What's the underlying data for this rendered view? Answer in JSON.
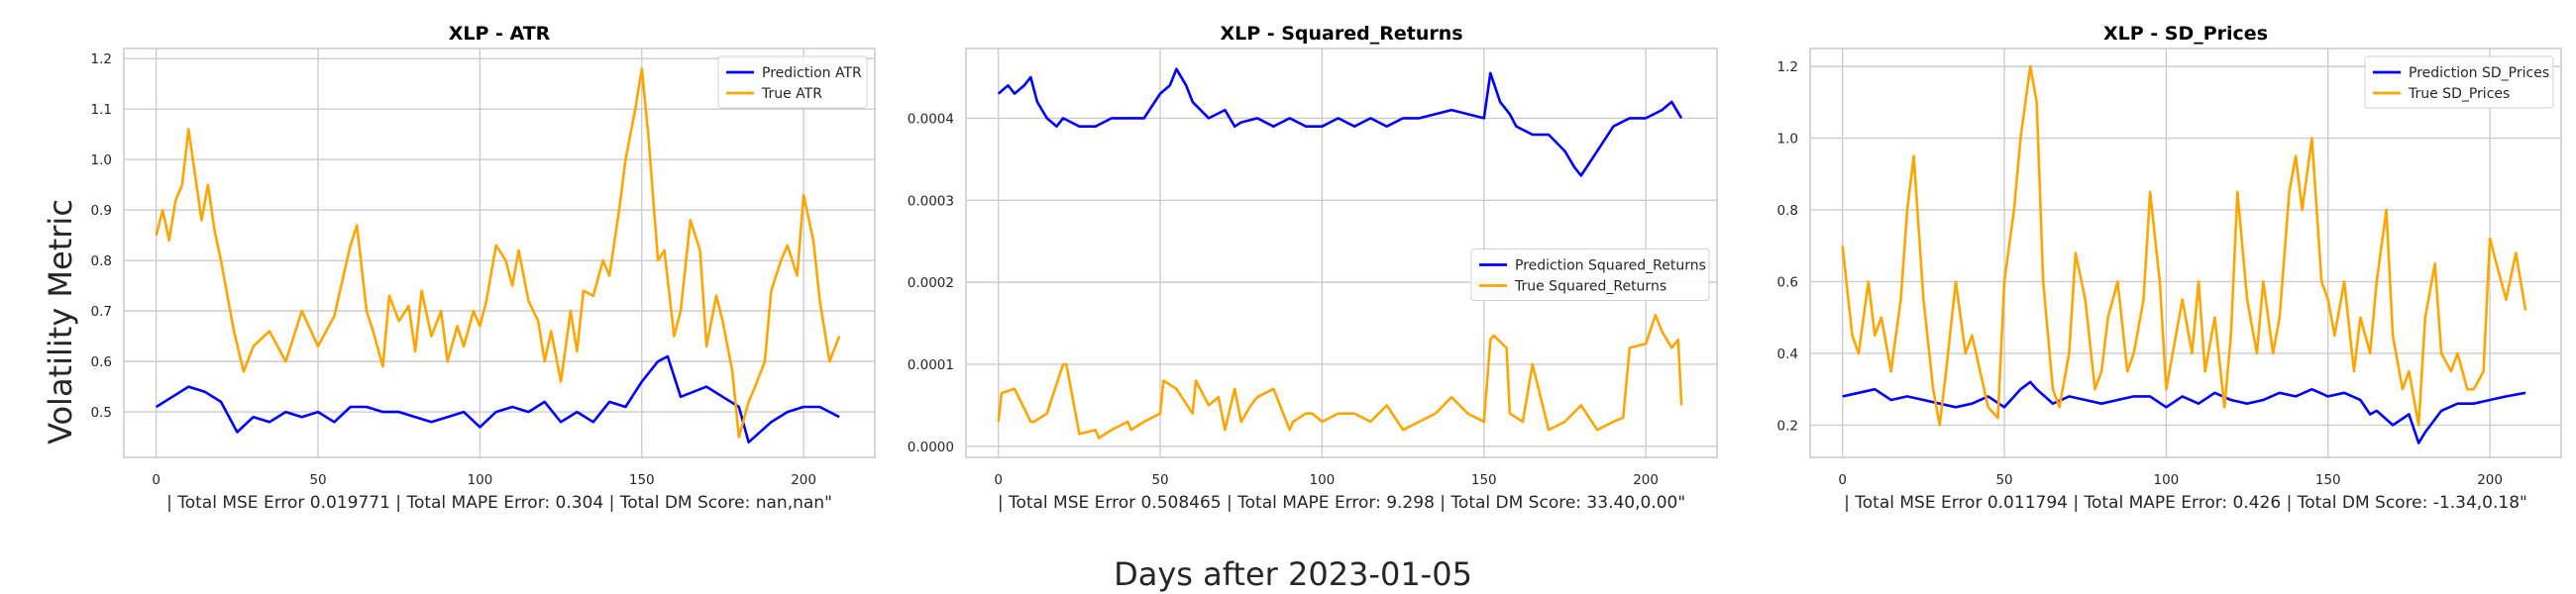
{
  "figure": {
    "ylabel": "Volatility Metric",
    "xlabel": "Days after 2023-01-05"
  },
  "colors": {
    "prediction": "#0000ff",
    "true": "#ffa500",
    "grid": "#cccccc",
    "frame": "#cccccc"
  },
  "chart_data": [
    {
      "type": "line",
      "title": "XLP - ATR",
      "note": "| Total MSE Error 0.019771 | Total MAPE Error: 0.304 | Total DM Score: nan,nan\"",
      "xlim": [
        -10,
        222
      ],
      "ylim": [
        0.41,
        1.22
      ],
      "xticks": [
        0,
        50,
        100,
        150,
        200
      ],
      "yticks": [
        "0.5",
        "0.6",
        "0.7",
        "0.8",
        "0.9",
        "1.0",
        "1.1",
        "1.2"
      ],
      "legend_position": "upper right",
      "series": [
        {
          "name": "Prediction ATR",
          "color": "#0000ff",
          "x": [
            0,
            5,
            10,
            15,
            20,
            25,
            30,
            35,
            40,
            45,
            50,
            55,
            60,
            65,
            70,
            75,
            80,
            85,
            90,
            95,
            100,
            105,
            110,
            115,
            120,
            125,
            130,
            135,
            140,
            145,
            150,
            155,
            158,
            162,
            170,
            175,
            180,
            183,
            190,
            195,
            200,
            205,
            211
          ],
          "y": [
            0.51,
            0.53,
            0.55,
            0.54,
            0.52,
            0.46,
            0.49,
            0.48,
            0.5,
            0.49,
            0.5,
            0.48,
            0.51,
            0.51,
            0.5,
            0.5,
            0.49,
            0.48,
            0.49,
            0.5,
            0.47,
            0.5,
            0.51,
            0.5,
            0.52,
            0.48,
            0.5,
            0.48,
            0.52,
            0.51,
            0.56,
            0.6,
            0.61,
            0.53,
            0.55,
            0.53,
            0.51,
            0.44,
            0.48,
            0.5,
            0.51,
            0.51,
            0.49
          ]
        },
        {
          "name": "True ATR",
          "color": "#ffa500",
          "x": [
            0,
            2,
            4,
            6,
            8,
            10,
            12,
            14,
            16,
            18,
            20,
            24,
            27,
            30,
            35,
            40,
            45,
            50,
            55,
            60,
            62,
            65,
            67,
            70,
            72,
            75,
            78,
            80,
            82,
            85,
            88,
            90,
            93,
            95,
            98,
            100,
            102,
            105,
            108,
            110,
            112,
            115,
            118,
            120,
            122,
            125,
            128,
            130,
            132,
            135,
            138,
            140,
            143,
            145,
            148,
            150,
            152,
            155,
            157,
            160,
            162,
            165,
            168,
            170,
            173,
            175,
            178,
            180,
            183,
            185,
            188,
            190,
            193,
            195,
            198,
            200,
            203,
            205,
            208,
            211
          ],
          "y": [
            0.85,
            0.9,
            0.84,
            0.92,
            0.95,
            1.06,
            0.97,
            0.88,
            0.95,
            0.86,
            0.8,
            0.66,
            0.58,
            0.63,
            0.66,
            0.6,
            0.7,
            0.63,
            0.69,
            0.83,
            0.87,
            0.7,
            0.66,
            0.59,
            0.73,
            0.68,
            0.71,
            0.62,
            0.74,
            0.65,
            0.7,
            0.6,
            0.67,
            0.63,
            0.7,
            0.67,
            0.72,
            0.83,
            0.8,
            0.75,
            0.82,
            0.72,
            0.68,
            0.6,
            0.66,
            0.56,
            0.7,
            0.62,
            0.74,
            0.73,
            0.8,
            0.77,
            0.9,
            1.0,
            1.1,
            1.18,
            1.05,
            0.8,
            0.82,
            0.65,
            0.7,
            0.88,
            0.82,
            0.63,
            0.73,
            0.68,
            0.58,
            0.45,
            0.52,
            0.55,
            0.6,
            0.74,
            0.8,
            0.83,
            0.77,
            0.93,
            0.84,
            0.72,
            0.6,
            0.65
          ]
        }
      ]
    },
    {
      "type": "line",
      "title": "XLP - Squared_Returns",
      "note": "| Total MSE Error 0.508465 | Total MAPE Error: 9.298 | Total DM Score: 33.40,0.00\"",
      "xlim": [
        -10,
        222
      ],
      "ylim": [
        -1.35e-05,
        0.000485
      ],
      "xticks": [
        0,
        50,
        100,
        150,
        200
      ],
      "yticks": [
        "0.0000",
        "0.0001",
        "0.0002",
        "0.0003",
        "0.0004"
      ],
      "legend_position": "center right",
      "series": [
        {
          "name": "Prediction Squared_Returns",
          "color": "#0000ff",
          "x": [
            0,
            3,
            5,
            8,
            10,
            12,
            15,
            18,
            20,
            25,
            30,
            35,
            40,
            45,
            50,
            53,
            55,
            58,
            60,
            65,
            70,
            73,
            75,
            80,
            85,
            90,
            95,
            100,
            105,
            110,
            115,
            120,
            125,
            130,
            135,
            140,
            145,
            150,
            152,
            155,
            158,
            160,
            165,
            170,
            175,
            178,
            180,
            185,
            190,
            195,
            200,
            205,
            208,
            211
          ],
          "y": [
            0.00043,
            0.00044,
            0.00043,
            0.00044,
            0.00045,
            0.00042,
            0.0004,
            0.00039,
            0.0004,
            0.00039,
            0.00039,
            0.0004,
            0.0004,
            0.0004,
            0.00043,
            0.00044,
            0.00046,
            0.00044,
            0.00042,
            0.0004,
            0.00041,
            0.00039,
            0.000395,
            0.0004,
            0.00039,
            0.0004,
            0.00039,
            0.00039,
            0.0004,
            0.00039,
            0.0004,
            0.00039,
            0.0004,
            0.0004,
            0.000405,
            0.00041,
            0.000405,
            0.0004,
            0.000455,
            0.00042,
            0.000405,
            0.00039,
            0.00038,
            0.00038,
            0.00036,
            0.00034,
            0.00033,
            0.00036,
            0.00039,
            0.0004,
            0.0004,
            0.00041,
            0.00042,
            0.0004
          ]
        },
        {
          "name": "True Squared_Returns",
          "color": "#ffa500",
          "x": [
            0,
            1,
            5,
            10,
            11,
            15,
            20,
            21,
            25,
            30,
            31,
            35,
            40,
            41,
            45,
            50,
            51,
            55,
            60,
            61,
            65,
            68,
            70,
            73,
            75,
            78,
            80,
            85,
            90,
            91,
            95,
            97,
            100,
            105,
            110,
            115,
            120,
            125,
            130,
            135,
            140,
            145,
            150,
            152,
            153,
            157,
            158,
            162,
            165,
            170,
            175,
            180,
            185,
            190,
            193,
            195,
            200,
            203,
            205,
            208,
            210,
            211
          ],
          "y": [
            3e-05,
            6.5e-05,
            7e-05,
            3e-05,
            3e-05,
            4e-05,
            0.0001,
            0.0001,
            1.5e-05,
            2e-05,
            1e-05,
            2e-05,
            3e-05,
            2e-05,
            3e-05,
            4e-05,
            8e-05,
            7e-05,
            4e-05,
            8e-05,
            5e-05,
            6e-05,
            2e-05,
            7e-05,
            3e-05,
            5e-05,
            6e-05,
            7e-05,
            2e-05,
            3e-05,
            4e-05,
            4e-05,
            3e-05,
            4e-05,
            4e-05,
            3e-05,
            5e-05,
            2e-05,
            3e-05,
            4e-05,
            6e-05,
            4e-05,
            3e-05,
            0.00013,
            0.000135,
            0.00012,
            4e-05,
            3e-05,
            0.0001,
            2e-05,
            3e-05,
            5e-05,
            2e-05,
            3e-05,
            3.5e-05,
            0.00012,
            0.000125,
            0.00016,
            0.00014,
            0.00012,
            0.00013,
            5e-05
          ]
        }
      ]
    },
    {
      "type": "line",
      "title": "XLP - SD_Prices",
      "note": "| Total MSE Error 0.011794 | Total MAPE Error: 0.426 | Total DM Score: -1.34,0.18\"",
      "xlim": [
        -10,
        222
      ],
      "ylim": [
        0.11,
        1.25
      ],
      "xticks": [
        0,
        50,
        100,
        150,
        200
      ],
      "yticks": [
        "0.2",
        "0.4",
        "0.6",
        "0.8",
        "1.0",
        "1.2"
      ],
      "legend_position": "upper right",
      "series": [
        {
          "name": "Prediction SD_Prices",
          "color": "#0000ff",
          "x": [
            0,
            5,
            10,
            15,
            20,
            25,
            30,
            35,
            40,
            45,
            50,
            55,
            58,
            60,
            65,
            70,
            75,
            80,
            85,
            90,
            95,
            100,
            105,
            110,
            115,
            120,
            125,
            130,
            135,
            140,
            145,
            150,
            155,
            160,
            163,
            165,
            170,
            175,
            178,
            180,
            185,
            190,
            195,
            200,
            205,
            211
          ],
          "y": [
            0.28,
            0.29,
            0.3,
            0.27,
            0.28,
            0.27,
            0.26,
            0.25,
            0.26,
            0.28,
            0.25,
            0.3,
            0.32,
            0.3,
            0.26,
            0.28,
            0.27,
            0.26,
            0.27,
            0.28,
            0.28,
            0.25,
            0.28,
            0.26,
            0.29,
            0.27,
            0.26,
            0.27,
            0.29,
            0.28,
            0.3,
            0.28,
            0.29,
            0.27,
            0.23,
            0.24,
            0.2,
            0.23,
            0.15,
            0.18,
            0.24,
            0.26,
            0.26,
            0.27,
            0.28,
            0.29
          ]
        },
        {
          "name": "True SD_Prices",
          "color": "#ffa500",
          "x": [
            0,
            3,
            5,
            8,
            10,
            12,
            15,
            18,
            20,
            22,
            25,
            28,
            30,
            32,
            35,
            38,
            40,
            43,
            45,
            48,
            50,
            53,
            55,
            58,
            60,
            62,
            65,
            67,
            70,
            72,
            75,
            78,
            80,
            82,
            85,
            88,
            90,
            93,
            95,
            98,
            100,
            102,
            105,
            108,
            110,
            112,
            115,
            118,
            120,
            122,
            125,
            128,
            130,
            133,
            135,
            138,
            140,
            142,
            145,
            148,
            150,
            152,
            155,
            158,
            160,
            163,
            165,
            168,
            170,
            173,
            175,
            178,
            180,
            183,
            185,
            188,
            190,
            193,
            195,
            198,
            200,
            202,
            205,
            208,
            211
          ],
          "y": [
            0.7,
            0.45,
            0.4,
            0.6,
            0.45,
            0.5,
            0.35,
            0.55,
            0.8,
            0.95,
            0.55,
            0.3,
            0.2,
            0.35,
            0.6,
            0.4,
            0.45,
            0.33,
            0.25,
            0.22,
            0.6,
            0.8,
            1.0,
            1.2,
            1.1,
            0.6,
            0.3,
            0.25,
            0.4,
            0.68,
            0.55,
            0.3,
            0.35,
            0.5,
            0.6,
            0.35,
            0.4,
            0.55,
            0.85,
            0.6,
            0.3,
            0.4,
            0.55,
            0.4,
            0.6,
            0.35,
            0.5,
            0.25,
            0.45,
            0.85,
            0.55,
            0.4,
            0.6,
            0.4,
            0.5,
            0.85,
            0.95,
            0.8,
            1.0,
            0.6,
            0.55,
            0.45,
            0.6,
            0.35,
            0.5,
            0.4,
            0.6,
            0.8,
            0.45,
            0.3,
            0.35,
            0.2,
            0.5,
            0.65,
            0.4,
            0.35,
            0.4,
            0.3,
            0.3,
            0.35,
            0.72,
            0.65,
            0.55,
            0.68,
            0.52
          ]
        }
      ]
    }
  ]
}
